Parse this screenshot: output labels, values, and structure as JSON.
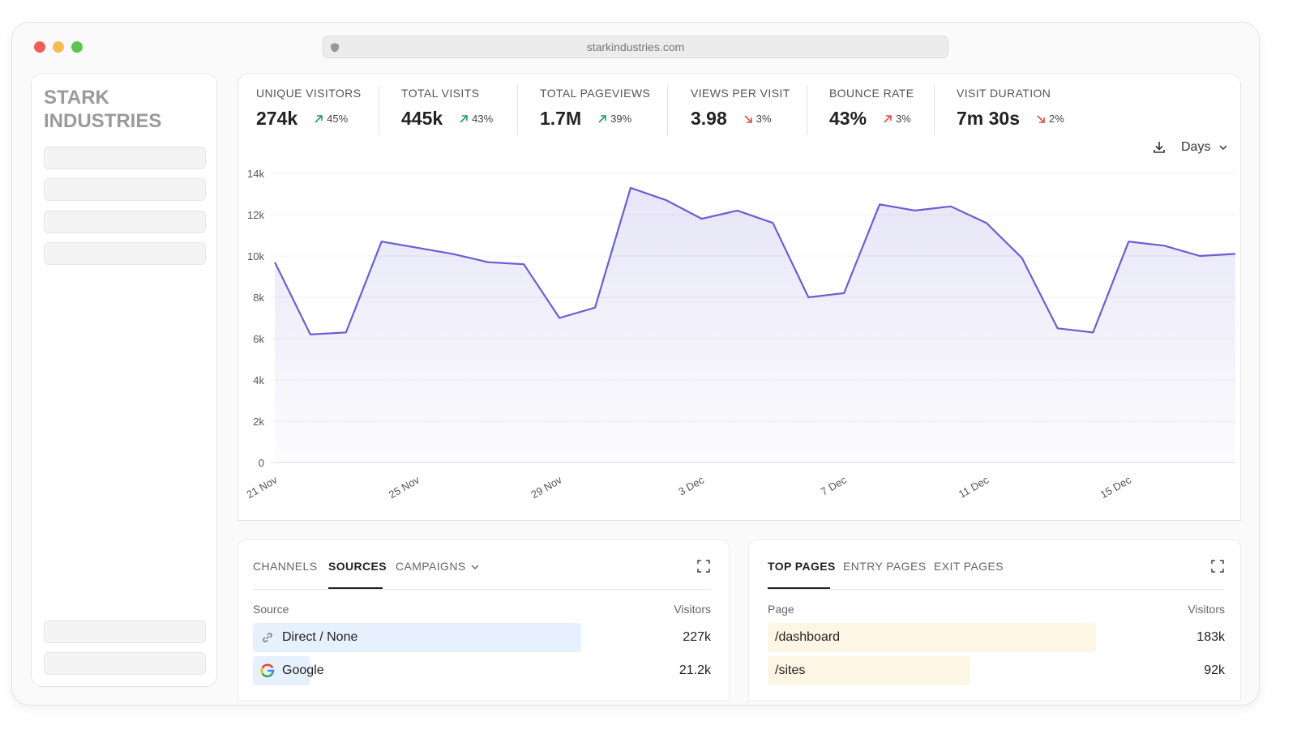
{
  "browser": {
    "url": "starkindustries.com"
  },
  "sidebar": {
    "brand": "STARK INDUSTRIES"
  },
  "metrics": [
    {
      "label": "UNIQUE VISITORS",
      "value": "274k",
      "change": "45%",
      "direction": "up",
      "color": "#1f9d55"
    },
    {
      "label": "TOTAL VISITS",
      "value": "445k",
      "change": "43%",
      "direction": "up",
      "color": "#1f9d55"
    },
    {
      "label": "TOTAL PAGEVIEWS",
      "value": "1.7M",
      "change": "39%",
      "direction": "up",
      "color": "#1f9d55"
    },
    {
      "label": "VIEWS PER VISIT",
      "value": "3.98",
      "change": "3%",
      "direction": "down",
      "color": "#e5484d"
    },
    {
      "label": "BOUNCE RATE",
      "value": "43%",
      "change": "3%",
      "direction": "up",
      "color": "#e5484d"
    },
    {
      "label": "VISIT DURATION",
      "value": "7m 30s",
      "change": "2%",
      "direction": "down",
      "color": "#e5484d"
    }
  ],
  "chart_controls": {
    "interval": "Days"
  },
  "chart_data": {
    "type": "line",
    "categories": [
      "21 Nov",
      null,
      null,
      null,
      "25 Nov",
      null,
      null,
      null,
      "29 Nov",
      null,
      null,
      null,
      "3 Dec",
      null,
      null,
      null,
      "7 Dec",
      null,
      null,
      null,
      "11 Dec",
      null,
      null,
      null,
      "15 Dec",
      null,
      null,
      null
    ],
    "values": [
      9700,
      6200,
      6300,
      10700,
      10400,
      10100,
      9700,
      9600,
      7000,
      7500,
      13300,
      12700,
      11800,
      12200,
      11600,
      8000,
      8200,
      12500,
      12200,
      12400,
      11600,
      9900,
      6500,
      6300,
      10700,
      10500,
      10000,
      10100
    ],
    "color": "#6a5fd1",
    "ylim": [
      0,
      14000
    ],
    "yticks": [
      0,
      {
        "value": 2000,
        "label": "2k"
      },
      {
        "value": 4000,
        "label": "4k"
      },
      {
        "value": 6000,
        "label": "6k"
      },
      {
        "value": 8000,
        "label": "8k"
      },
      {
        "value": 10000,
        "label": "10k"
      },
      {
        "value": 12000,
        "label": "12k"
      },
      {
        "value": 14000,
        "label": "14k"
      }
    ],
    "grid": true
  },
  "sources_panel": {
    "tabs": [
      "CHANNELS",
      "SOURCES",
      "CAMPAIGNS"
    ],
    "columns": [
      "Source",
      "Visitors"
    ],
    "rows": [
      {
        "name": "Direct / None",
        "visitors": "227k"
      },
      {
        "name": "Google",
        "visitors": "21.2k"
      }
    ]
  },
  "pages_panel": {
    "tabs": [
      "TOP PAGES",
      "ENTRY PAGES",
      "EXIT PAGES"
    ],
    "columns": [
      "Page",
      "Visitors"
    ],
    "rows": [
      {
        "name": "/dashboard",
        "visitors": "183k"
      },
      {
        "name": "/sites",
        "visitors": "92k"
      }
    ]
  }
}
